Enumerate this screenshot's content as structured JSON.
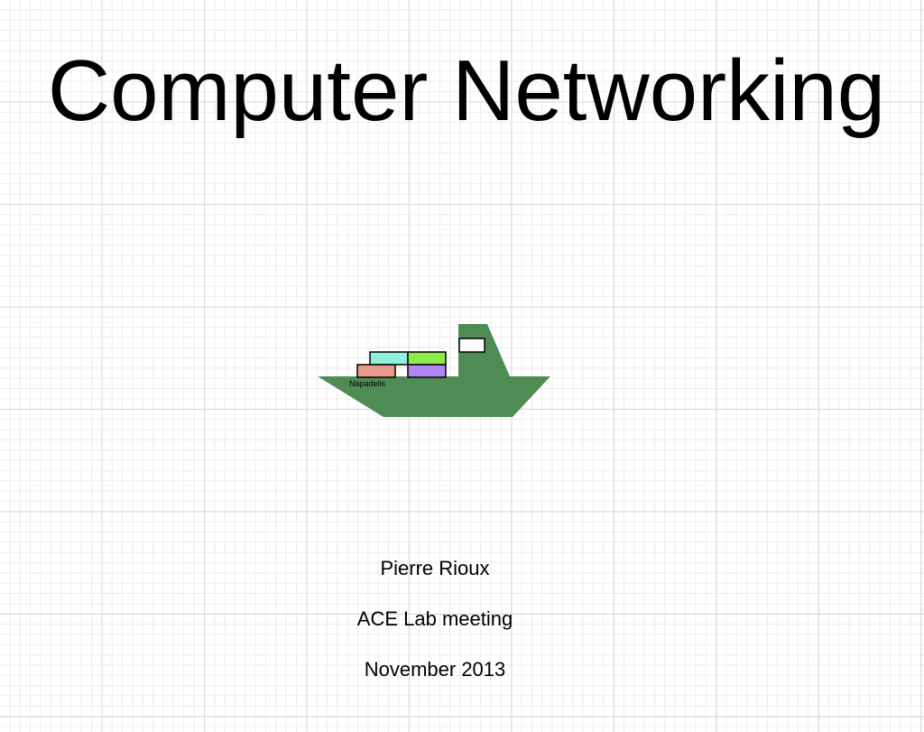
{
  "slide": {
    "title": "Computer Networking",
    "author": "Pierre Rioux",
    "event": "ACE Lab meeting",
    "date": "November 2013"
  },
  "ship_graphic": {
    "icon": "cargo-ship-icon",
    "name_label": "Napadelis",
    "hull_color": "#4f8c55",
    "container_colors": [
      "#8ff0dc",
      "#8fea4a",
      "#e89a8a",
      "#b087f0"
    ]
  }
}
